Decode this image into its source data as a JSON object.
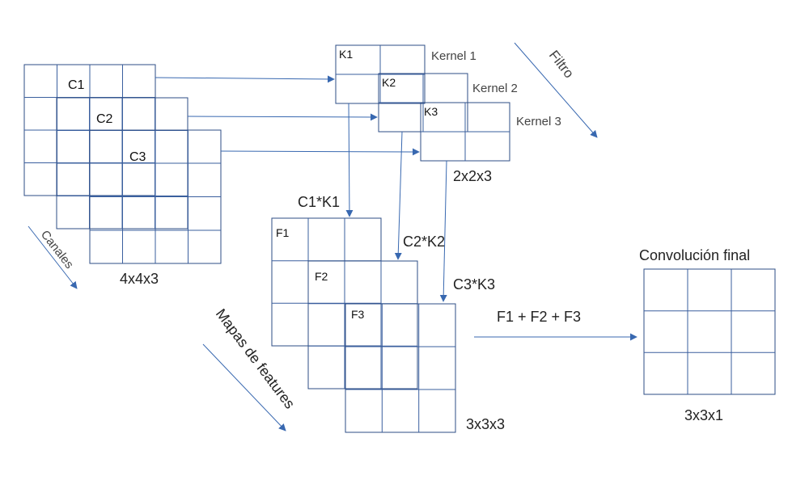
{
  "input": {
    "channels": [
      "C1",
      "C2",
      "C3"
    ],
    "dims": "4x4x3",
    "axis_label": "Canales"
  },
  "filter": {
    "kernels": [
      "K1",
      "K2",
      "K3"
    ],
    "kernel_names": [
      "Kernel 1",
      "Kernel 2",
      "Kernel 3"
    ],
    "dims": "2x2x3",
    "axis_label": "Filtro"
  },
  "feature_maps": {
    "maps": [
      "F1",
      "F2",
      "F3"
    ],
    "ops": [
      "C1*K1",
      "C2*K2",
      "C3*K3"
    ],
    "dims": "3x3x3",
    "axis_label": "Mapas de features"
  },
  "sum_label": "F1 + F2 + F3",
  "output": {
    "title": "Convolución final",
    "dims": "3x3x1"
  },
  "colors": {
    "c1": "#6b95cf",
    "c2": "#ccee22",
    "c3": "#b8c8de",
    "k2": "#ffaa00",
    "f1": "#1d7a2a",
    "f2": "#8a8a8a",
    "f3": "#f4caca",
    "output": "#6b95cf",
    "arrow": "#3868b0"
  }
}
